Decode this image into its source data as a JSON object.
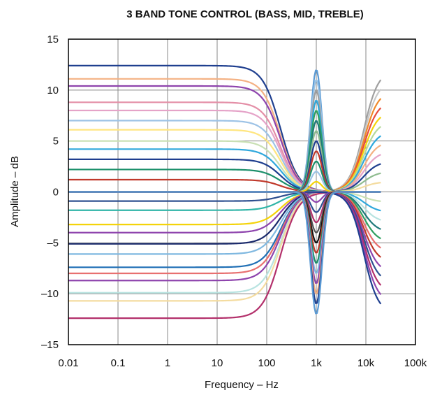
{
  "chart_data": {
    "type": "line",
    "title": "3 BAND TONE CONTROL (BASS, MID, TREBLE)",
    "xlabel": "Frequency – Hz",
    "ylabel": "Amplitude – dB",
    "x_scale": "log",
    "xlim": [
      0.01,
      100000
    ],
    "ylim": [
      -15,
      15
    ],
    "x_ticks": [
      {
        "value": 0.01,
        "label": "0.01"
      },
      {
        "value": 0.1,
        "label": "0.1"
      },
      {
        "value": 1,
        "label": "1"
      },
      {
        "value": 10,
        "label": "10"
      },
      {
        "value": 100,
        "label": "100"
      },
      {
        "value": 1000,
        "label": "1k"
      },
      {
        "value": 10000,
        "label": "10k"
      },
      {
        "value": 100000,
        "label": "100k"
      }
    ],
    "y_ticks": [
      {
        "value": 15,
        "label": "15"
      },
      {
        "value": 10,
        "label": "10"
      },
      {
        "value": 5,
        "label": "5"
      },
      {
        "value": 0,
        "label": "0"
      },
      {
        "value": -5,
        "label": "–5"
      },
      {
        "value": -10,
        "label": "–10"
      },
      {
        "value": -15,
        "label": "–15"
      }
    ],
    "grid": true,
    "legend": "none",
    "x_range_plotted": [
      0.01,
      20000
    ],
    "bass_shelf_levels_db": [
      12.4,
      11.1,
      10.4,
      8.8,
      8.0,
      7.0,
      6.1,
      5.0,
      4.2,
      3.2,
      2.2,
      1.2,
      0,
      -0.9,
      -1.8,
      -3.2,
      -4.0,
      -5.1,
      -6.1,
      -7.4,
      -8.0,
      -8.7,
      -9.9,
      -10.7,
      -12.4
    ],
    "bass_shelf_colors": [
      "#1f3f8f",
      "#f4b183",
      "#8e44ad",
      "#e48fa7",
      "#e5a3c8",
      "#9dc3e6",
      "#ffe680",
      "#c9e0b4",
      "#2fa8dc",
      "#1f3f8f",
      "#1b8f6a",
      "#c0392b",
      "#5b9bd5",
      "#2e5090",
      "#30b5a8",
      "#f4d30a",
      "#8e44ad",
      "#1a2a6c",
      "#7fb8e0",
      "#1f6fb5",
      "#e87070",
      "#8e44ad",
      "#b7e3e0",
      "#f4dca0",
      "#b3306b"
    ],
    "mid_peak_levels_db": [
      12,
      11,
      10,
      9,
      8,
      7,
      6,
      5,
      4,
      3,
      2,
      1,
      -1,
      -2,
      -3,
      -4,
      -5,
      -6,
      -7,
      -8,
      -9,
      -10,
      -11,
      -12
    ],
    "mid_peak_colors": [
      "#5b9bd5",
      "#9bc4e6",
      "#a0a0a0",
      "#2fa8dc",
      "#30a060",
      "#1f7a7a",
      "#8fbc8f",
      "#1f3f8f",
      "#c0392b",
      "#1b8f6a",
      "#9dc3e6",
      "#f4d30a",
      "#8e44ad",
      "#2e5090",
      "#b3306b",
      "#555555",
      "#111111",
      "#c0392b",
      "#1b8f6a",
      "#7fb8e0",
      "#8e44ad",
      "#f4b183",
      "#1f3f8f",
      "#5b9bd5"
    ],
    "mid_center_hz": 1000,
    "treble_shelf_levels_db": [
      12,
      11,
      10,
      9,
      8,
      7,
      6,
      5,
      4,
      3,
      2,
      1,
      -1,
      -2,
      -3,
      -4,
      -5,
      -6,
      -7,
      -8,
      -9,
      -10,
      -11,
      -12
    ],
    "treble_shelf_colors": [
      "#a0a0a0",
      "#c8c8c8",
      "#f08a2a",
      "#e74c3c",
      "#f4d30a",
      "#b5d99c",
      "#2fa8dc",
      "#f4b183",
      "#e5a3c8",
      "#1f3f8f",
      "#8fbc8f",
      "#f4dca0",
      "#c9e0b4",
      "#2fa8dc",
      "#b7e3e0",
      "#1f7a7a",
      "#30a060",
      "#e87070",
      "#c0392b",
      "#8e44ad",
      "#2e5090",
      "#b3306b",
      "#8e44ad",
      "#1f3f8f"
    ],
    "treble_corner_hz": 9000
  }
}
